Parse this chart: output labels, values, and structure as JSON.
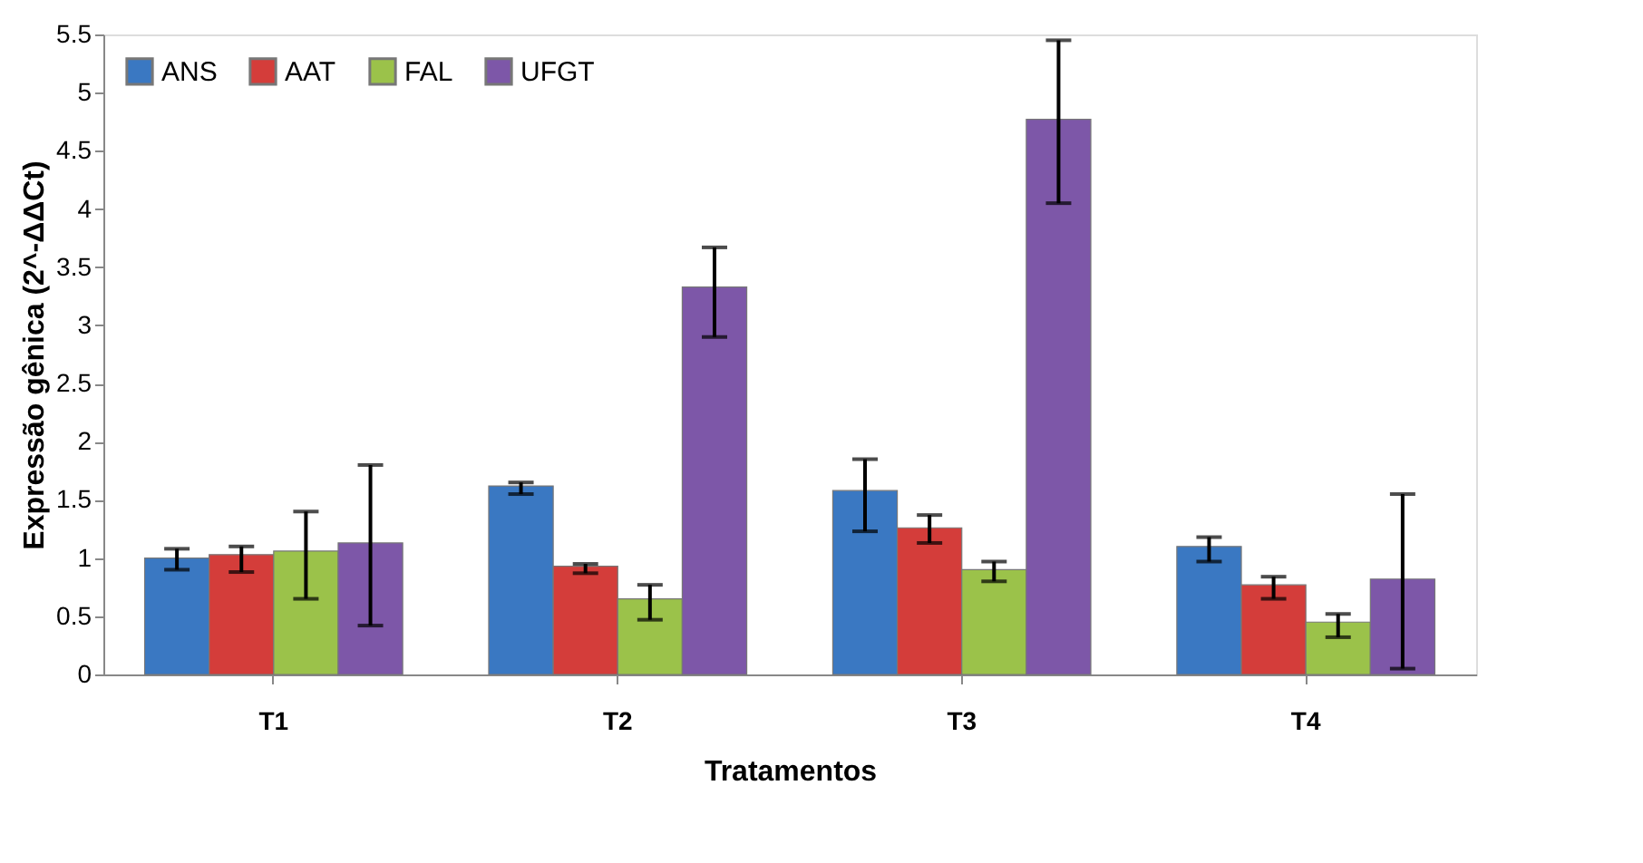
{
  "chart_data": {
    "type": "bar",
    "categories": [
      "T1",
      "T2",
      "T3",
      "T4"
    ],
    "xlabel": "Tratamentos",
    "ylabel": "Expressão gênica (2^-ΔΔCt)",
    "ylim": [
      0,
      5.5
    ],
    "yticks": [
      0,
      0.5,
      1,
      1.5,
      2,
      2.5,
      3,
      3.5,
      4,
      4.5,
      5,
      5.5
    ],
    "grid": false,
    "legend": "top left",
    "series": [
      {
        "name": "ANS",
        "color": "#3a78c2",
        "values": [
          1.0,
          1.62,
          1.58,
          1.1
        ],
        "errors": [
          [
            0.9,
            1.08
          ],
          [
            1.55,
            1.65
          ],
          [
            1.23,
            1.85
          ],
          [
            0.97,
            1.18
          ]
        ]
      },
      {
        "name": "AAT",
        "color": "#d43d3a",
        "values": [
          1.03,
          0.93,
          1.26,
          0.77
        ],
        "errors": [
          [
            0.88,
            1.1
          ],
          [
            0.87,
            0.95
          ],
          [
            1.13,
            1.37
          ],
          [
            0.65,
            0.84
          ]
        ]
      },
      {
        "name": "FAL",
        "color": "#9bc24a",
        "values": [
          1.06,
          0.65,
          0.9,
          0.45
        ],
        "errors": [
          [
            0.65,
            1.4
          ],
          [
            0.47,
            0.77
          ],
          [
            0.8,
            0.97
          ],
          [
            0.32,
            0.52
          ]
        ]
      },
      {
        "name": "UFGT",
        "color": "#7d57a8",
        "values": [
          1.13,
          3.33,
          4.77,
          0.82
        ],
        "errors": [
          [
            0.42,
            1.8
          ],
          [
            2.9,
            3.67
          ],
          [
            4.05,
            5.45
          ],
          [
            0.05,
            1.55
          ]
        ]
      }
    ]
  }
}
